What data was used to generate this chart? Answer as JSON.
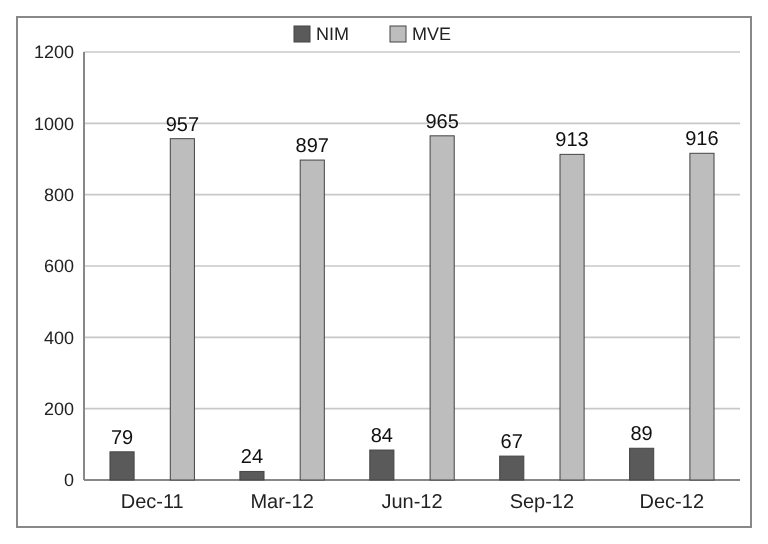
{
  "chart_data": {
    "type": "bar",
    "categories": [
      "Dec-11",
      "Mar-12",
      "Jun-12",
      "Sep-12",
      "Dec-12"
    ],
    "series": [
      {
        "name": "NIM",
        "color": "#5a5a5a",
        "values": [
          79,
          24,
          84,
          67,
          89
        ]
      },
      {
        "name": "MVE",
        "color": "#bdbdbd",
        "values": [
          957,
          897,
          965,
          913,
          916
        ]
      }
    ],
    "ylim": [
      0,
      1200
    ],
    "yticks": [
      0,
      200,
      400,
      600,
      800,
      1000,
      1200
    ],
    "grid": "y",
    "legend": "top",
    "data_labels": true
  }
}
